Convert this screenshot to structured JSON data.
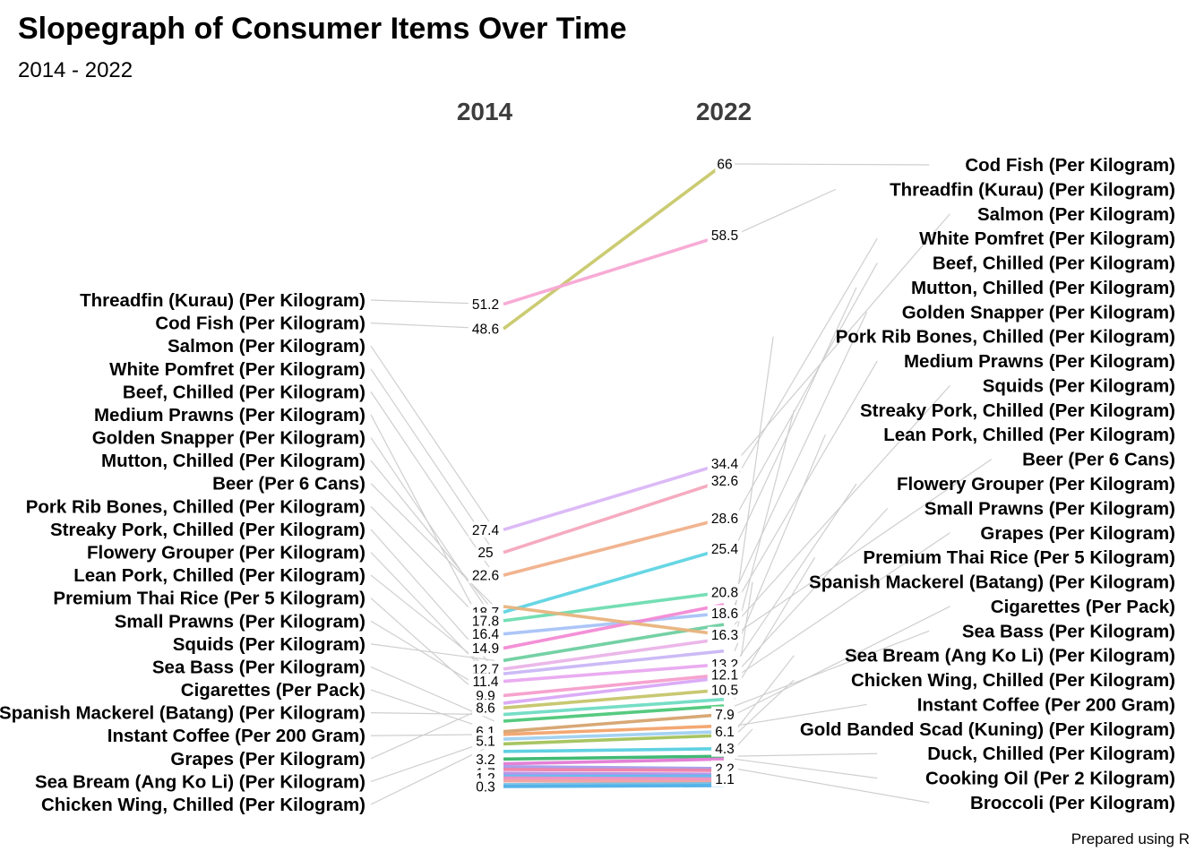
{
  "chart_data": {
    "type": "slopegraph",
    "title": "Slopegraph of Consumer Items Over Time",
    "subtitle": "2014 - 2022",
    "caption": "Prepared using R",
    "periods": [
      "2014",
      "2022"
    ],
    "series": [
      {
        "name": "Cod Fish (Per Kilogram)",
        "values": [
          48.6,
          66
        ],
        "color": "#c8c86a"
      },
      {
        "name": "Threadfin (Kurau) (Per Kilogram)",
        "values": [
          51.2,
          58.5
        ],
        "color": "#f7a6d3"
      },
      {
        "name": "Salmon (Per Kilogram)",
        "values": [
          27.4,
          34.4
        ],
        "color": "#dab6f5"
      },
      {
        "name": "White Pomfret (Per Kilogram)",
        "values": [
          25,
          32.6
        ],
        "color": "#f4a6bd"
      },
      {
        "name": "Beef, Chilled (Per Kilogram)",
        "values": [
          22.6,
          28.6
        ],
        "color": "#f0b08a"
      },
      {
        "name": "Mutton, Chilled (Per Kilogram)",
        "values": [
          18.7,
          25.4
        ],
        "color": "#5fd4e3"
      },
      {
        "name": "Golden Snapper (Per Kilogram)",
        "values": [
          17.8,
          20.8
        ],
        "color": "#6ddcb0"
      },
      {
        "name": "Pork Rib Bones, Chilled (Per Kilogram)",
        "values": [
          16.4,
          18.6
        ],
        "color": "#a9c3f7"
      },
      {
        "name": "Medium Prawns (Per Kilogram)",
        "values": [
          14.9,
          19.5
        ],
        "color": "#f38ad5"
      },
      {
        "name": "Squids (Per Kilogram)",
        "values": [
          13.6,
          17.4
        ],
        "color": "#6ecfa0"
      },
      {
        "name": "Streaky Pork, Chilled (Per Kilogram)",
        "values": [
          12.7,
          15.9
        ],
        "color": "#eab3e8"
      },
      {
        "name": "Lean Pork, Chilled (Per Kilogram)",
        "values": [
          12.2,
          14.6
        ],
        "color": "#c9b6f5"
      },
      {
        "name": "Beer (Per 6 Cans)",
        "values": [
          19.3,
          16.3
        ],
        "color": "#e8b37d"
      },
      {
        "name": "Flowery Grouper (Per Kilogram)",
        "values": [
          11.4,
          13.2
        ],
        "color": "#e9a8f0"
      },
      {
        "name": "Small Prawns (Per Kilogram)",
        "values": [
          9.9,
          12.1
        ],
        "color": "#f59ecb"
      },
      {
        "name": "Grapes (Per Kilogram)",
        "values": [
          9.1,
          11.8
        ],
        "color": "#d9a8f7"
      },
      {
        "name": "Premium Thai Rice (Per 5 Kilogram)",
        "values": [
          8.6,
          10.5
        ],
        "color": "#c5c56c"
      },
      {
        "name": "Spanish Mackerel (Batang) (Per Kilogram)",
        "values": [
          7.9,
          9.5
        ],
        "color": "#6fdcc3"
      },
      {
        "name": "Cigarettes (Per Pack)",
        "values": [
          6.1,
          7.9
        ],
        "color": "#d6a36f"
      },
      {
        "name": "Sea Bass (Per Kilogram)",
        "values": [
          7.2,
          8.8
        ],
        "color": "#4dc779"
      },
      {
        "name": "Sea Bream (Ang Ko Li) (Per Kilogram)",
        "values": [
          5.3,
          6.1
        ],
        "color": "#9fd0f0"
      },
      {
        "name": "Chicken Wing, Chilled (Per Kilogram)",
        "values": [
          4.8,
          5.7
        ],
        "color": "#a3c25a"
      },
      {
        "name": "Instant Coffee (Per 200 Gram)",
        "values": [
          5.8,
          6.7
        ],
        "color": "#f2a36b"
      },
      {
        "name": "Gold Banded Scad (Kuning) (Per Kilogram)",
        "values": [
          4.0,
          4.3
        ],
        "color": "#56cfe0"
      },
      {
        "name": "Duck, Chilled (Per Kilogram)",
        "values": [
          3.2,
          3.5
        ],
        "color": "#37b56d"
      },
      {
        "name": "Cooking Oil (Per 2 Kilogram)",
        "values": [
          2.7,
          3.2
        ],
        "color": "#e17ad3"
      },
      {
        "name": "Broccoli (Per Kilogram)",
        "values": [
          2.4,
          2.2
        ],
        "color": "#a79be8"
      },
      {
        "name": "",
        "values": [
          2.1,
          2.0
        ],
        "color": "#ef7fa6"
      },
      {
        "name": "",
        "values": [
          1.7,
          1.6
        ],
        "color": "#b88fe6"
      },
      {
        "name": "",
        "values": [
          1.4,
          1.4
        ],
        "color": "#62b8ee"
      },
      {
        "name": "",
        "values": [
          1.2,
          1.1
        ],
        "color": "#f08fc0"
      },
      {
        "name": "",
        "values": [
          0.9,
          0.8
        ],
        "color": "#f0a0a0"
      },
      {
        "name": "",
        "values": [
          0.5,
          0.6
        ],
        "color": "#71c0e6"
      },
      {
        "name": "",
        "values": [
          0.3,
          0.4
        ],
        "color": "#4fb0e8"
      }
    ],
    "left_labels": [
      "Threadfin (Kurau) (Per Kilogram)",
      "Cod Fish (Per Kilogram)",
      "Salmon (Per Kilogram)",
      "White Pomfret (Per Kilogram)",
      "Beef, Chilled (Per Kilogram)",
      "Medium Prawns (Per Kilogram)",
      "Golden Snapper (Per Kilogram)",
      "Mutton, Chilled (Per Kilogram)",
      "Beer (Per 6 Cans)",
      "Pork Rib Bones, Chilled (Per Kilogram)",
      "Streaky Pork, Chilled (Per Kilogram)",
      "Flowery Grouper (Per Kilogram)",
      "Lean Pork, Chilled (Per Kilogram)",
      "Premium Thai Rice (Per 5 Kilogram)",
      "Small Prawns (Per Kilogram)",
      "Squids (Per Kilogram)",
      "Sea Bass (Per Kilogram)",
      "Cigarettes (Per Pack)",
      "Spanish Mackerel (Batang) (Per Kilogram)",
      "Instant Coffee (Per 200 Gram)",
      "Grapes (Per Kilogram)",
      "Sea Bream (Ang Ko Li) (Per Kilogram)",
      "Chicken Wing, Chilled (Per Kilogram)"
    ],
    "right_labels": [
      "Cod Fish (Per Kilogram)",
      "Threadfin (Kurau) (Per Kilogram)",
      "Salmon (Per Kilogram)",
      "White Pomfret (Per Kilogram)",
      "Beef, Chilled (Per Kilogram)",
      "Mutton, Chilled (Per Kilogram)",
      "Golden Snapper (Per Kilogram)",
      "Pork Rib Bones, Chilled (Per Kilogram)",
      "Medium Prawns (Per Kilogram)",
      "Squids (Per Kilogram)",
      "Streaky Pork, Chilled (Per Kilogram)",
      "Lean Pork, Chilled (Per Kilogram)",
      "Beer (Per 6 Cans)",
      "Flowery Grouper (Per Kilogram)",
      "Small Prawns (Per Kilogram)",
      "Grapes (Per Kilogram)",
      "Premium Thai Rice (Per 5 Kilogram)",
      "Spanish Mackerel (Batang) (Per Kilogram)",
      "Cigarettes (Per Pack)",
      "Sea Bass (Per Kilogram)",
      "Sea Bream (Ang Ko Li) (Per Kilogram)",
      "Chicken Wing, Chilled (Per Kilogram)",
      "Instant Coffee (Per 200 Gram)",
      "Gold Banded Scad (Kuning) (Per Kilogram)",
      "Duck, Chilled (Per Kilogram)",
      "Cooking Oil (Per 2 Kilogram)",
      "Broccoli (Per Kilogram)"
    ],
    "left_value_labels": [
      "51.2",
      "48.6",
      "27.4",
      "25",
      "22.6",
      "18.7",
      "17.8",
      "16.4",
      "14.9",
      "12.7",
      "11.4",
      "9.9",
      "8.6",
      "6.1",
      "5.1",
      "3.2",
      "1.7",
      "1.2",
      "0.3"
    ],
    "right_value_labels": [
      "66",
      "58.5",
      "34.4",
      "32.6",
      "28.6",
      "25.4",
      "20.8",
      "18.6",
      "16.3",
      "13.2",
      "12.1",
      "10.5",
      "7.9",
      "6.1",
      "4.3",
      "2.2",
      "1.1"
    ],
    "grid": false,
    "legend": "none"
  }
}
